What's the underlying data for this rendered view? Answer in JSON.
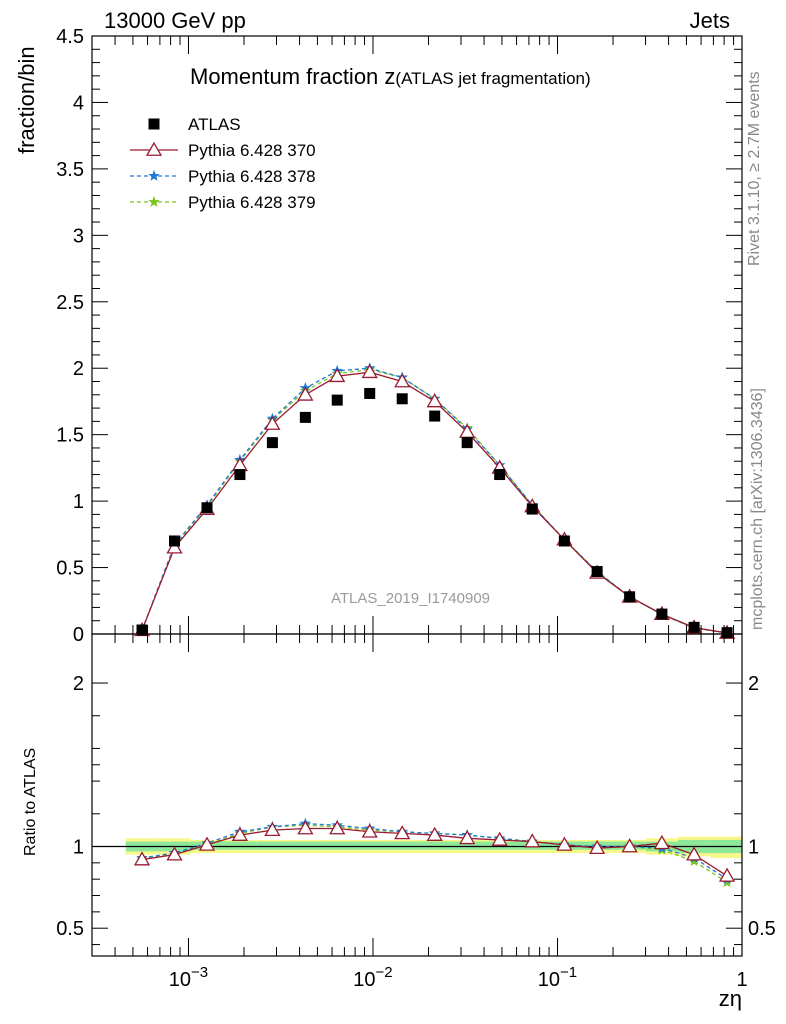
{
  "header": {
    "left": "13000 GeV pp",
    "right": "Jets"
  },
  "title": {
    "main": "Momentum fraction z",
    "sub": "(ATLAS jet fragmentation)"
  },
  "watermark": "ATLAS_2019_I1740909",
  "side_labels": {
    "rivet": "Rivet 3.1.10, ≥ 2.7M events",
    "mcplots": "mcplots.cern.ch [arXiv:1306.3436]"
  },
  "labels": {
    "ylabel_top": "fraction/bin",
    "ylabel_bottom": "Ratio to ATLAS",
    "xlabel": "zη"
  },
  "colors": {
    "data": "#000000",
    "p370": "#9b1b30",
    "p378": "#1f78d8",
    "p379": "#7cc520",
    "band_inner": "#8ee89a",
    "band_outer": "#f7f78a"
  },
  "chart_data": [
    {
      "type": "scatter",
      "panel": "main",
      "x_scale": "log",
      "xlim": [
        0.0003,
        1
      ],
      "ylim": [
        0,
        4.5
      ],
      "yticks": [
        "0",
        "0.5",
        "1",
        "1.5",
        "2",
        "2.5",
        "3",
        "3.5",
        "4",
        "4.5"
      ],
      "xticks": [
        "10^-3",
        "10^-2",
        "10^-1",
        "1"
      ],
      "x": [
        0.00056,
        0.00084,
        0.00126,
        0.0019,
        0.00285,
        0.0043,
        0.0064,
        0.0096,
        0.0144,
        0.0216,
        0.0324,
        0.0486,
        0.073,
        0.109,
        0.164,
        0.246,
        0.368,
        0.55,
        0.83
      ],
      "series": [
        {
          "name": "ATLAS",
          "key": "data",
          "marker": "square",
          "values": [
            0.03,
            0.7,
            0.95,
            1.2,
            1.44,
            1.63,
            1.76,
            1.81,
            1.77,
            1.64,
            1.44,
            1.2,
            0.94,
            0.7,
            0.47,
            0.28,
            0.15,
            0.05,
            0.01
          ]
        },
        {
          "name": "Pythia 6.428 370",
          "key": "p370",
          "marker": "triangle",
          "line": "solid",
          "values": [
            0.028,
            0.65,
            0.94,
            1.27,
            1.58,
            1.8,
            1.94,
            1.97,
            1.9,
            1.75,
            1.52,
            1.25,
            0.96,
            0.71,
            0.46,
            0.28,
            0.15,
            0.048,
            0.008
          ]
        },
        {
          "name": "Pythia 6.428 378",
          "key": "p378",
          "marker": "star",
          "line": "dashed",
          "values": [
            0.028,
            0.67,
            0.97,
            1.31,
            1.62,
            1.85,
            1.98,
            2.0,
            1.93,
            1.77,
            1.54,
            1.27,
            0.97,
            0.71,
            0.47,
            0.28,
            0.147,
            0.046,
            0.008
          ]
        },
        {
          "name": "Pythia 6.428 379",
          "key": "p379",
          "marker": "star",
          "line": "dashed",
          "values": [
            0.028,
            0.66,
            0.96,
            1.3,
            1.61,
            1.83,
            1.96,
            1.99,
            1.93,
            1.77,
            1.55,
            1.27,
            0.97,
            0.71,
            0.47,
            0.28,
            0.145,
            0.045,
            0.0078
          ]
        }
      ]
    },
    {
      "type": "line",
      "panel": "ratio",
      "x_scale": "log",
      "xlim": [
        0.0003,
        1
      ],
      "ylim": [
        0.33,
        2.3
      ],
      "yticks": [
        "0.5",
        "1",
        "2"
      ],
      "x": [
        0.00056,
        0.00084,
        0.00126,
        0.0019,
        0.00285,
        0.0043,
        0.0064,
        0.0096,
        0.0144,
        0.0216,
        0.0324,
        0.0486,
        0.073,
        0.109,
        0.164,
        0.246,
        0.368,
        0.55,
        0.83
      ],
      "series": [
        {
          "name": "Pythia 6.428 370",
          "key": "p370",
          "values": [
            0.92,
            0.95,
            1.01,
            1.07,
            1.1,
            1.11,
            1.11,
            1.09,
            1.08,
            1.07,
            1.05,
            1.04,
            1.03,
            1.01,
            0.99,
            1.0,
            1.02,
            0.95,
            0.82
          ]
        },
        {
          "name": "Pythia 6.428 378",
          "key": "p378",
          "values": [
            0.93,
            0.96,
            1.02,
            1.09,
            1.12,
            1.14,
            1.13,
            1.11,
            1.09,
            1.08,
            1.07,
            1.05,
            1.03,
            1.01,
            1.0,
            1.0,
            0.99,
            0.93,
            0.8
          ]
        },
        {
          "name": "Pythia 6.428 379",
          "key": "p379",
          "values": [
            0.92,
            0.96,
            1.01,
            1.08,
            1.12,
            1.13,
            1.12,
            1.1,
            1.09,
            1.08,
            1.07,
            1.05,
            1.03,
            1.01,
            0.99,
            1.0,
            0.98,
            0.91,
            0.78
          ]
        }
      ],
      "band_inner": [
        0.97,
        0.97,
        0.98,
        0.98,
        0.98,
        0.98,
        0.98,
        0.98,
        0.98,
        0.98,
        0.98,
        0.98,
        0.98,
        0.98,
        0.98,
        0.98,
        0.97,
        0.96,
        0.96
      ],
      "band_inner_hi": [
        1.03,
        1.03,
        1.03,
        1.03,
        1.03,
        1.03,
        1.03,
        1.03,
        1.03,
        1.03,
        1.03,
        1.03,
        1.03,
        1.03,
        1.03,
        1.03,
        1.03,
        1.04,
        1.04
      ],
      "band_outer": [
        0.95,
        0.95,
        0.96,
        0.96,
        0.96,
        0.96,
        0.96,
        0.96,
        0.96,
        0.96,
        0.96,
        0.96,
        0.96,
        0.96,
        0.96,
        0.96,
        0.95,
        0.94,
        0.93
      ],
      "band_outer_hi": [
        1.05,
        1.05,
        1.04,
        1.04,
        1.04,
        1.04,
        1.04,
        1.04,
        1.04,
        1.04,
        1.04,
        1.04,
        1.04,
        1.04,
        1.04,
        1.04,
        1.05,
        1.06,
        1.06
      ]
    }
  ]
}
